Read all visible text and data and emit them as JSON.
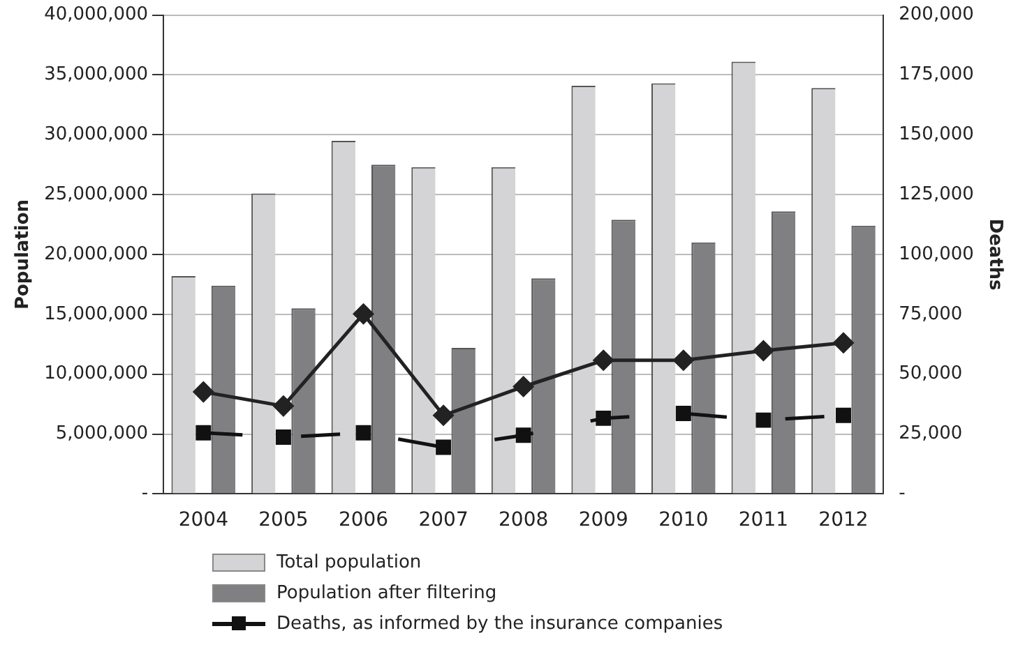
{
  "chart_data": {
    "type": "bar",
    "categories": [
      "2004",
      "2005",
      "2006",
      "2007",
      "2008",
      "2009",
      "2010",
      "2011",
      "2012"
    ],
    "ylabel": "Population",
    "y2label": "Deaths",
    "series": [
      {
        "name": "Total population",
        "color": "#d4d4d6",
        "values": [
          18200000,
          25100000,
          29500000,
          27300000,
          27300000,
          34100000,
          34300000,
          36100000,
          33900000
        ]
      },
      {
        "name": "Population after filtering",
        "color": "#808083",
        "values": [
          17400000,
          15500000,
          27500000,
          12200000,
          18000000,
          22900000,
          21000000,
          23600000,
          22400000
        ]
      },
      {
        "type": "line",
        "axis": "y2",
        "color": "#222222",
        "marker": "diamond",
        "line_style": "solid",
        "values": [
          42600,
          36700,
          75200,
          32800,
          44800,
          55800,
          55800,
          59800,
          63100
        ]
      },
      {
        "type": "line",
        "axis": "y2",
        "name": "Deaths, as informed by the insurance companies",
        "color": "#111111",
        "marker": "square",
        "line_style": "dashed",
        "values": [
          25500,
          23700,
          25500,
          19500,
          24500,
          31600,
          33600,
          30800,
          32800
        ]
      }
    ],
    "ylim": [
      0,
      40000000
    ],
    "yticks": [
      {
        "value": 0,
        "label": "-"
      },
      {
        "value": 5000000,
        "label": "5,000,000"
      },
      {
        "value": 10000000,
        "label": "10,000,000"
      },
      {
        "value": 15000000,
        "label": "15,000,000"
      },
      {
        "value": 20000000,
        "label": "20,000,000"
      },
      {
        "value": 25000000,
        "label": "25,000,000"
      },
      {
        "value": 30000000,
        "label": "30,000,000"
      },
      {
        "value": 35000000,
        "label": "35,000,000"
      },
      {
        "value": 40000000,
        "label": "40,000,000"
      }
    ],
    "y2lim": [
      0,
      200000
    ],
    "y2ticks": [
      {
        "value": 0,
        "label": "-"
      },
      {
        "value": 25000,
        "label": "25,000"
      },
      {
        "value": 50000,
        "label": "50,000"
      },
      {
        "value": 75000,
        "label": "75,000"
      },
      {
        "value": 100000,
        "label": "100,000"
      },
      {
        "value": 125000,
        "label": "125,000"
      },
      {
        "value": 150000,
        "label": "150,000"
      },
      {
        "value": 175000,
        "label": "175,000"
      },
      {
        "value": 200000,
        "label": "200,000"
      }
    ],
    "grid": "y",
    "legend": "bottom"
  }
}
